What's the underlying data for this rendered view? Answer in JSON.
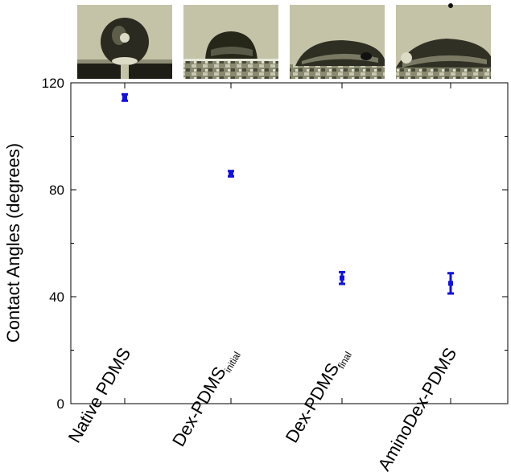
{
  "chart_data": {
    "type": "scatter",
    "ylabel": "Contact Angles (degrees)",
    "ylim": [
      0,
      120
    ],
    "yticks": [
      0,
      40,
      80,
      120
    ],
    "categories": [
      {
        "main": "Native PDMS",
        "sub": ""
      },
      {
        "main": "Dex-PDMS",
        "sub": "initial"
      },
      {
        "main": "Dex-PDMS",
        "sub": "final"
      },
      {
        "main": "AminoDex-PDMS",
        "sub": ""
      }
    ],
    "values": [
      114.5,
      86,
      47,
      45
    ],
    "errors": [
      1.2,
      1.0,
      2.2,
      3.8
    ],
    "marker_color": "#1010e0",
    "grid": false,
    "droplet_images": [
      "native-pdms-droplet",
      "dex-pdms-initial-droplet",
      "dex-pdms-final-droplet",
      "aminodex-pdms-droplet"
    ]
  }
}
